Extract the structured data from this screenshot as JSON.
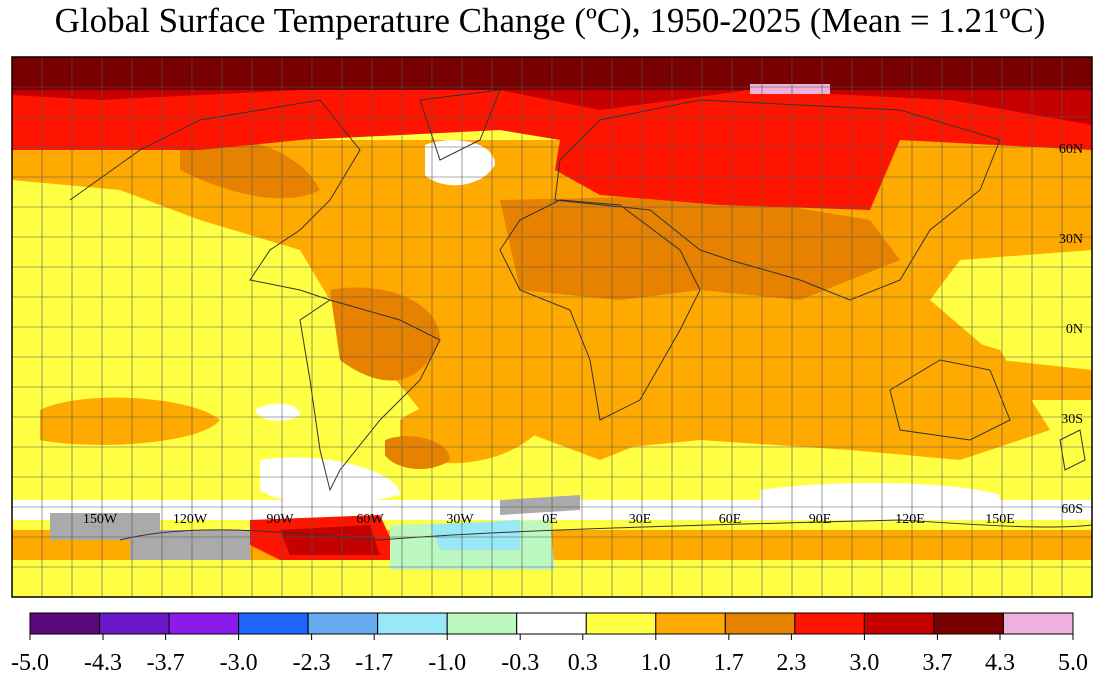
{
  "title": "Global Surface Temperature Change (ºC), 1950-2025 (Mean = 1.21ºC)",
  "map": {
    "longitude_labels": [
      "150W",
      "120W",
      "90W",
      "60W",
      "30W",
      "0E",
      "30E",
      "60E",
      "90E",
      "120E",
      "150E"
    ],
    "latitude_labels": [
      "60N",
      "30N",
      "0N",
      "30S",
      "60S"
    ]
  },
  "colorbar": {
    "colors": [
      "#5a0a78",
      "#6a18c8",
      "#8c1ae8",
      "#2064ff",
      "#66aaf0",
      "#98e8f8",
      "#bcf8c0",
      "#ffffff",
      "#ffff44",
      "#ffaa00",
      "#e68200",
      "#ff1400",
      "#c40000",
      "#780000",
      "#ecb2dc"
    ],
    "ticks": [
      {
        "value": -5,
        "label": "-5.0"
      },
      -4.3,
      -3.7,
      {
        "value": -3,
        "label": "-3.0"
      },
      -2.3,
      -1.7,
      {
        "value": -1,
        "label": "-1.0"
      },
      -0.3,
      0.3,
      {
        "value": 1,
        "label": "1.0"
      },
      1.7,
      2.3,
      {
        "value": 3,
        "label": "3.0"
      },
      3.7,
      4.3,
      {
        "value": 5,
        "label": "5.0"
      }
    ]
  }
}
